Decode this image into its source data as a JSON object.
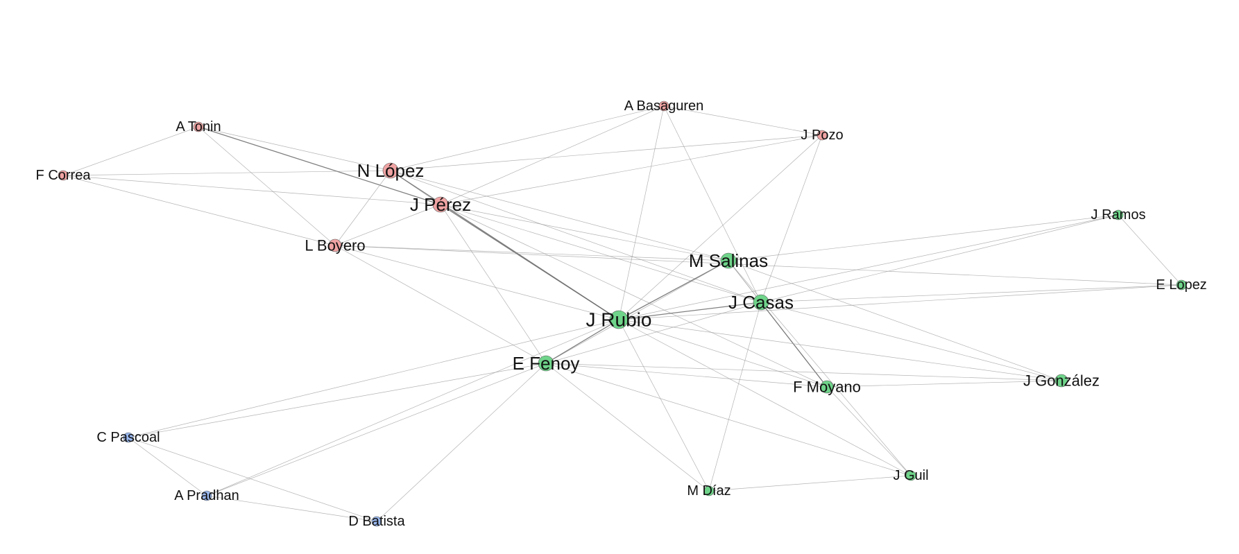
{
  "colors": {
    "red_group": "#f0a3a3",
    "green_group": "#6fd48a",
    "blue_group": "#9ab8ee"
  },
  "nodes": [
    {
      "id": "tonin",
      "label": "A Tonin",
      "group": "red_group",
      "weight": 1
    },
    {
      "id": "basaguren",
      "label": "A Basaguren",
      "group": "red_group",
      "weight": 1
    },
    {
      "id": "pozo",
      "label": "J Pozo",
      "group": "red_group",
      "weight": 1
    },
    {
      "id": "correa",
      "label": "F Correa",
      "group": "red_group",
      "weight": 1
    },
    {
      "id": "nlopez",
      "label": "N López",
      "group": "red_group",
      "weight": 3
    },
    {
      "id": "jperez",
      "label": "J Pérez",
      "group": "red_group",
      "weight": 3
    },
    {
      "id": "boyero",
      "label": "L Boyero",
      "group": "red_group",
      "weight": 2
    },
    {
      "id": "ramos",
      "label": "J Ramos",
      "group": "green_group",
      "weight": 1
    },
    {
      "id": "salinas",
      "label": "M Salinas",
      "group": "green_group",
      "weight": 3
    },
    {
      "id": "elopez",
      "label": "E Lopez",
      "group": "green_group",
      "weight": 1
    },
    {
      "id": "casas",
      "label": "J Casas",
      "group": "green_group",
      "weight": 3
    },
    {
      "id": "rubio",
      "label": "J Rubio",
      "group": "green_group",
      "weight": 4
    },
    {
      "id": "fenoy",
      "label": "E Fenoy",
      "group": "green_group",
      "weight": 3
    },
    {
      "id": "moyano",
      "label": "F Moyano",
      "group": "green_group",
      "weight": 2
    },
    {
      "id": "gonzalez",
      "label": "J González",
      "group": "green_group",
      "weight": 2
    },
    {
      "id": "guil",
      "label": "J Guil",
      "group": "green_group",
      "weight": 1
    },
    {
      "id": "diaz",
      "label": "M Díaz",
      "group": "green_group",
      "weight": 1
    },
    {
      "id": "pascoal",
      "label": "C Pascoal",
      "group": "blue_group",
      "weight": 1
    },
    {
      "id": "pradhan",
      "label": "A Pradhan",
      "group": "blue_group",
      "weight": 1
    },
    {
      "id": "batista",
      "label": "D Batista",
      "group": "blue_group",
      "weight": 1
    }
  ],
  "edges": [
    [
      "tonin",
      "correa",
      1
    ],
    [
      "tonin",
      "nlopez",
      1
    ],
    [
      "tonin",
      "jperez",
      2
    ],
    [
      "tonin",
      "boyero",
      1
    ],
    [
      "correa",
      "nlopez",
      1
    ],
    [
      "correa",
      "jperez",
      1
    ],
    [
      "correa",
      "boyero",
      1
    ],
    [
      "basaguren",
      "nlopez",
      1
    ],
    [
      "basaguren",
      "pozo",
      1
    ],
    [
      "basaguren",
      "jperez",
      1
    ],
    [
      "basaguren",
      "rubio",
      1
    ],
    [
      "basaguren",
      "casas",
      1
    ],
    [
      "pozo",
      "nlopez",
      1
    ],
    [
      "pozo",
      "jperez",
      1
    ],
    [
      "pozo",
      "rubio",
      1
    ],
    [
      "pozo",
      "casas",
      1
    ],
    [
      "nlopez",
      "jperez",
      1
    ],
    [
      "nlopez",
      "boyero",
      1
    ],
    [
      "nlopez",
      "rubio",
      2
    ],
    [
      "nlopez",
      "salinas",
      1
    ],
    [
      "nlopez",
      "casas",
      1
    ],
    [
      "jperez",
      "boyero",
      1
    ],
    [
      "jperez",
      "rubio",
      3
    ],
    [
      "jperez",
      "fenoy",
      1
    ],
    [
      "jperez",
      "salinas",
      1
    ],
    [
      "jperez",
      "casas",
      1
    ],
    [
      "jperez",
      "moyano",
      1
    ],
    [
      "boyero",
      "salinas",
      1
    ],
    [
      "boyero",
      "rubio",
      1
    ],
    [
      "boyero",
      "fenoy",
      1
    ],
    [
      "boyero",
      "elopez",
      1
    ],
    [
      "ramos",
      "elopez",
      1
    ],
    [
      "ramos",
      "salinas",
      1
    ],
    [
      "ramos",
      "casas",
      1
    ],
    [
      "ramos",
      "rubio",
      1
    ],
    [
      "elopez",
      "casas",
      1
    ],
    [
      "elopez",
      "rubio",
      1
    ],
    [
      "salinas",
      "rubio",
      2
    ],
    [
      "salinas",
      "casas",
      1
    ],
    [
      "salinas",
      "gonzalez",
      1
    ],
    [
      "salinas",
      "fenoy",
      1
    ],
    [
      "salinas",
      "moyano",
      1
    ],
    [
      "salinas",
      "guil",
      1
    ],
    [
      "casas",
      "rubio",
      2
    ],
    [
      "casas",
      "fenoy",
      1
    ],
    [
      "casas",
      "moyano",
      3
    ],
    [
      "casas",
      "gonzalez",
      1
    ],
    [
      "casas",
      "diaz",
      1
    ],
    [
      "rubio",
      "fenoy",
      3
    ],
    [
      "rubio",
      "moyano",
      1
    ],
    [
      "rubio",
      "gonzalez",
      1
    ],
    [
      "rubio",
      "diaz",
      1
    ],
    [
      "rubio",
      "guil",
      1
    ],
    [
      "rubio",
      "pascoal",
      1
    ],
    [
      "rubio",
      "pradhan",
      1
    ],
    [
      "fenoy",
      "moyano",
      1
    ],
    [
      "fenoy",
      "gonzalez",
      1
    ],
    [
      "fenoy",
      "diaz",
      1
    ],
    [
      "fenoy",
      "guil",
      1
    ],
    [
      "fenoy",
      "pascoal",
      1
    ],
    [
      "fenoy",
      "pradhan",
      1
    ],
    [
      "fenoy",
      "batista",
      1
    ],
    [
      "moyano",
      "gonzalez",
      1
    ],
    [
      "moyano",
      "guil",
      1
    ],
    [
      "guil",
      "diaz",
      1
    ],
    [
      "pascoal",
      "pradhan",
      1
    ],
    [
      "pascoal",
      "batista",
      1
    ],
    [
      "pradhan",
      "batista",
      1
    ]
  ]
}
